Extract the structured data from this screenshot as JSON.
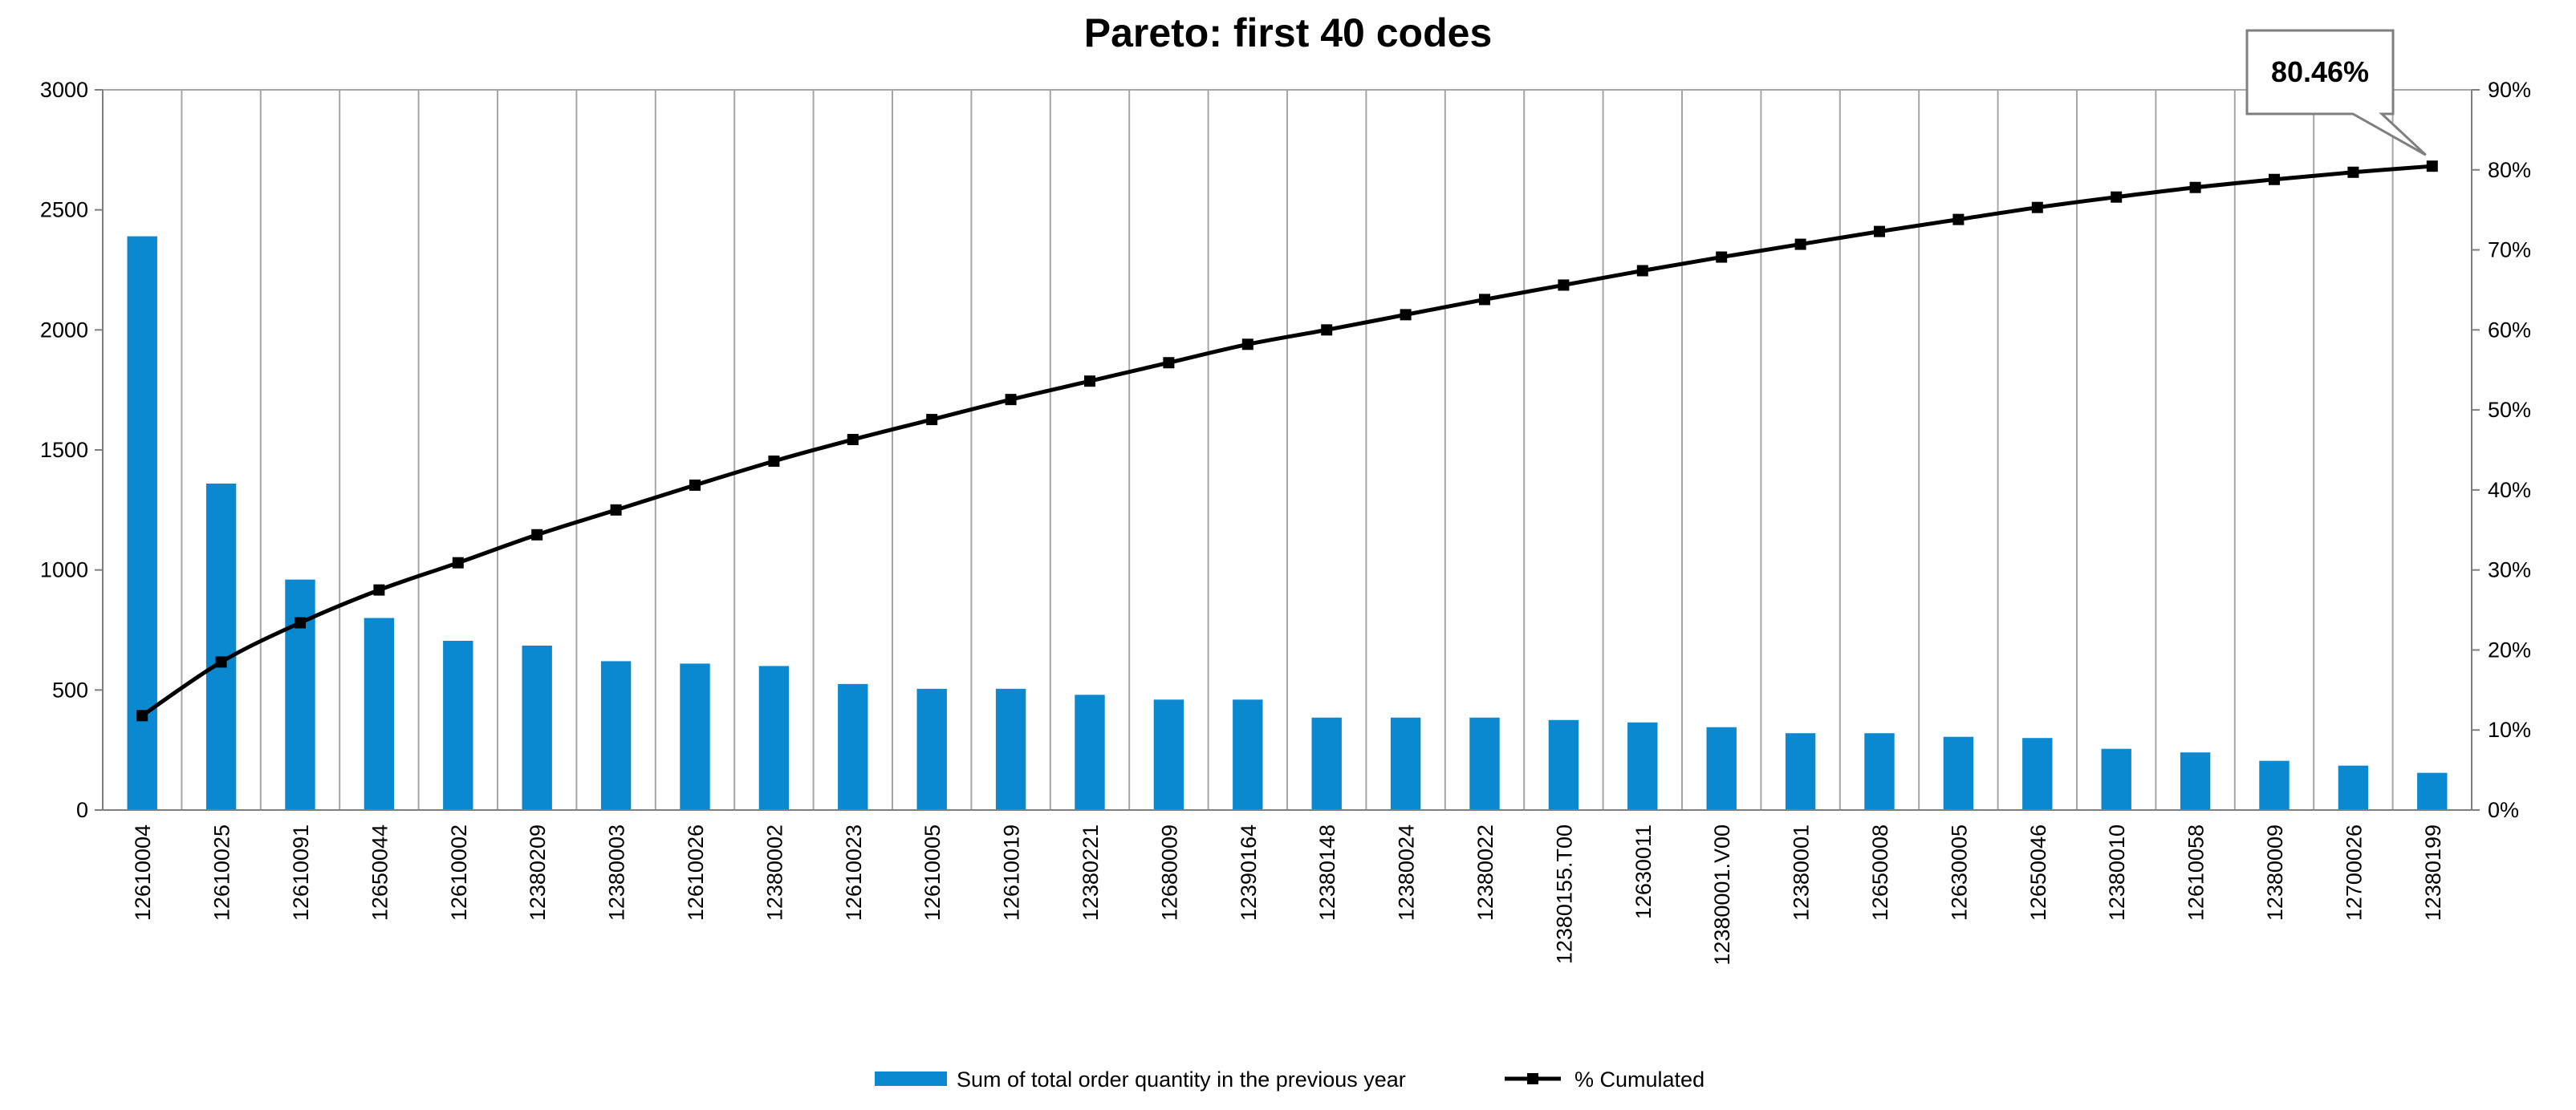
{
  "chart_data": {
    "type": "bar",
    "title": "Pareto: first 40 codes",
    "categories": [
      "12610004",
      "12610025",
      "12610091",
      "12650044",
      "12610002",
      "12380209",
      "12380003",
      "12610026",
      "12380002",
      "12610023",
      "12610005",
      "12610019",
      "12380221",
      "12680009",
      "12390164",
      "12380148",
      "12380024",
      "12380022",
      "12380155.T00",
      "12630011",
      "12380001.V00",
      "12380001",
      "12650008",
      "12630005",
      "12650046",
      "12380010",
      "12610058",
      "12380009",
      "12700026",
      "12380199"
    ],
    "series": [
      {
        "name": "Sum of total order quantity in the previous year",
        "type": "bar",
        "axis": "left",
        "color": "#0a88d0",
        "values": [
          2390,
          1360,
          960,
          800,
          705,
          685,
          620,
          610,
          600,
          525,
          505,
          505,
          480,
          460,
          460,
          385,
          385,
          385,
          375,
          365,
          345,
          320,
          320,
          305,
          300,
          255,
          240,
          205,
          185,
          155
        ]
      },
      {
        "name": "% Cumulated",
        "type": "line",
        "axis": "right",
        "color": "#000000",
        "values": [
          11.8,
          18.5,
          23.4,
          27.5,
          30.9,
          34.4,
          37.5,
          40.6,
          43.6,
          46.3,
          48.8,
          51.3,
          53.6,
          55.9,
          58.2,
          60.0,
          61.9,
          63.8,
          65.6,
          67.4,
          69.1,
          70.7,
          72.3,
          73.8,
          75.3,
          76.6,
          77.8,
          78.8,
          79.7,
          80.46
        ]
      }
    ],
    "y_left": {
      "ylim": [
        0,
        3000
      ],
      "ticks": [
        "0",
        "500",
        "1000",
        "1500",
        "2000",
        "2500",
        "3000"
      ]
    },
    "y_right": {
      "ylim": [
        0,
        90
      ],
      "ticks": [
        "0%",
        "10%",
        "20%",
        "30%",
        "40%",
        "50%",
        "60%",
        "70%",
        "80%",
        "90%"
      ]
    },
    "grid": "vertical",
    "legend_position": "bottom",
    "annotation": {
      "text": "80.46%",
      "value": 80.46
    }
  }
}
